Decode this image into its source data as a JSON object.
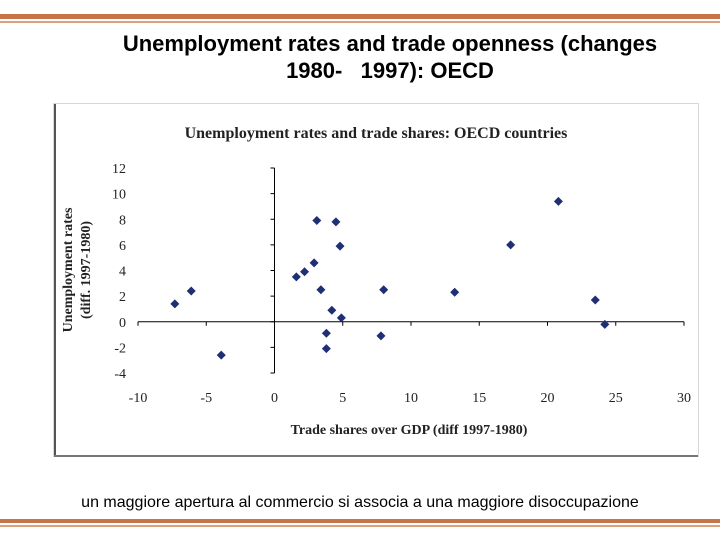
{
  "slide": {
    "title_line1": "Unemployment rates and trade openness (changes",
    "title_line2": "1980-   1997): OECD",
    "caption": "un maggiore apertura al commercio si associa a una maggiore disoccupazione"
  },
  "colors": {
    "rule": "#c8744a",
    "marker": "#1f2f73"
  },
  "chart_data": {
    "type": "scatter",
    "title": "Unemployment rates and trade shares: OECD countries",
    "xlabel": "Trade shares over GDP (diff 1997-1980)",
    "ylabel_line1": "Unemployment rates",
    "ylabel_line2": "(diff. 1997-1980)",
    "xlim": [
      -10,
      30
    ],
    "ylim": [
      -4,
      12
    ],
    "xticks": [
      -10,
      -5,
      0,
      5,
      10,
      15,
      20,
      25,
      30
    ],
    "yticks": [
      -4,
      -2,
      0,
      2,
      4,
      6,
      8,
      10,
      12
    ],
    "grid": false,
    "legend": "none",
    "points": [
      {
        "x": -7.3,
        "y": 1.4
      },
      {
        "x": -6.1,
        "y": 2.4
      },
      {
        "x": -3.9,
        "y": -2.6
      },
      {
        "x": 1.6,
        "y": 3.5
      },
      {
        "x": 2.2,
        "y": 3.9
      },
      {
        "x": 2.9,
        "y": 4.6
      },
      {
        "x": 3.1,
        "y": 7.9
      },
      {
        "x": 3.4,
        "y": 2.5
      },
      {
        "x": 3.8,
        "y": -0.9
      },
      {
        "x": 3.8,
        "y": -2.1
      },
      {
        "x": 4.2,
        "y": 0.9
      },
      {
        "x": 4.5,
        "y": 7.8
      },
      {
        "x": 4.8,
        "y": 5.9
      },
      {
        "x": 4.9,
        "y": 0.3
      },
      {
        "x": 7.8,
        "y": -1.1
      },
      {
        "x": 8.0,
        "y": 2.5
      },
      {
        "x": 13.2,
        "y": 2.3
      },
      {
        "x": 17.3,
        "y": 6.0
      },
      {
        "x": 20.8,
        "y": 9.4
      },
      {
        "x": 23.5,
        "y": 1.7
      },
      {
        "x": 24.2,
        "y": -0.2
      }
    ]
  }
}
